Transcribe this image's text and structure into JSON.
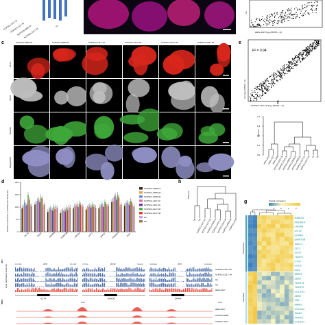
{
  "panels": {
    "c": "c",
    "d": "d",
    "e": "e",
    "f": "f",
    "g": "g",
    "h": "h",
    "i": "i",
    "j": "j"
  },
  "top_strip": {
    "legend_items": [
      "hCiPSCs-1117-1#",
      "hCiPSCs-1117-3#",
      "hCiPSCs-0928-3#",
      "hCiPSCs-1217-3#",
      "H1"
    ]
  },
  "panel_c": {
    "columns": [
      "hCiPSCs-0928-1#",
      "hCiPSCs-0928-2#",
      "hCiPSCs-1117-1#",
      "hCiPSCs-1117-3#",
      "hCiPSCs-0127-3#",
      "hCiPSCs-0127-4#"
    ],
    "rows": [
      {
        "marker": "OCT4",
        "color": "#d8261c"
      },
      {
        "marker": "SOX2",
        "color": "#bdbdbd"
      },
      {
        "marker": "NANOG",
        "color": "#3fa93a"
      },
      {
        "marker": "Merge/DAPI",
        "color": "#8e8ec2"
      }
    ]
  },
  "panel_e": {
    "r2": "R² = 0.94",
    "ylabel": "H1 (log₂ (FPKM + 1))",
    "xlabel": "hCiPSCs-1117-1# (log₂ (FPKM + 1))",
    "top_xlabel": "HEFs-1117 (log₂ (FPKM + 1))",
    "top_ylabel": "H1"
  },
  "panel_f": {
    "ylabel": "Distance",
    "ticks": [
      "0.0",
      "0.1",
      "0.2",
      "0.3",
      "0.4"
    ],
    "leaves": [
      "HEFs-0127",
      "HEFs-1117",
      "HEFs-0928",
      "hCiPSCs-0127-3#",
      "hCiPSCs-0127-4#",
      "hCiPSCs-0928-1#",
      "hCiPSCs-0928-2#",
      "hCiPSCs-0928-3#",
      "hCiPSCs-1117-1#",
      "hCiPSCs-1117-3#",
      "H1",
      "H9"
    ]
  },
  "panel_d": {
    "ylabel": "Relative expression to GAPDH and HEFs (%)",
    "yticks": [
      "0",
      "50",
      "100",
      "150",
      "200"
    ],
    "ylim": [
      0,
      200
    ],
    "genes": [
      "OCT4",
      "SOX2",
      "NANOG",
      "DNMT3B",
      "DPPA4",
      "UTF1",
      "ZFP42",
      "PRDM14",
      "ZIC3"
    ],
    "legend": [
      {
        "name": "hCiPSCs-0928-1#",
        "color": "#2a2a2a"
      },
      {
        "name": "hCiPSCs-0928-2#",
        "color": "#f2a13a"
      },
      {
        "name": "hCiPSCs-0928-3#",
        "color": "#5c8fcf"
      },
      {
        "name": "hCiPSCs-1117-1#",
        "color": "#e06ca4"
      },
      {
        "name": "hCiPSCs-1117-3#",
        "color": "#6a3aa2"
      },
      {
        "name": "hCiPSCs-0127-3#",
        "color": "#4db04a"
      },
      {
        "name": "hCiPSCs-0127-4#",
        "color": "#e53c2f"
      },
      {
        "name": "H1",
        "color": "#c8a2d8"
      },
      {
        "name": "H9",
        "color": "#9c7b52"
      }
    ]
  },
  "chart_data": {
    "type": "bar",
    "categories": [
      "OCT4",
      "SOX2",
      "NANOG",
      "DNMT3B",
      "DPPA4",
      "UTF1",
      "ZFP42",
      "PRDM14",
      "ZIC3"
    ],
    "ylabel": "Relative expression to GAPDH and HEFs (%)",
    "ylim": [
      0,
      200
    ],
    "series": [
      {
        "name": "hCiPSCs-0928-1#",
        "values": [
          95,
          110,
          80,
          75,
          95,
          90,
          95,
          120,
          105
        ]
      },
      {
        "name": "hCiPSCs-0928-2#",
        "values": [
          100,
          115,
          88,
          80,
          100,
          95,
          100,
          125,
          110
        ]
      },
      {
        "name": "hCiPSCs-0928-3#",
        "values": [
          120,
          125,
          95,
          85,
          105,
          100,
          110,
          140,
          118
        ]
      },
      {
        "name": "hCiPSCs-1117-1#",
        "values": [
          105,
          130,
          90,
          90,
          110,
          105,
          105,
          145,
          115
        ]
      },
      {
        "name": "hCiPSCs-1117-3#",
        "values": [
          110,
          120,
          85,
          82,
          100,
          98,
          100,
          130,
          108
        ]
      },
      {
        "name": "hCiPSCs-0127-3#",
        "values": [
          150,
          140,
          100,
          95,
          115,
          110,
          120,
          150,
          125
        ]
      },
      {
        "name": "hCiPSCs-0127-4#",
        "values": [
          130,
          135,
          92,
          88,
          108,
          102,
          112,
          138,
          120
        ]
      },
      {
        "name": "H1",
        "values": [
          100,
          100,
          100,
          100,
          100,
          100,
          100,
          100,
          100
        ]
      },
      {
        "name": "H9",
        "values": [
          105,
          110,
          95,
          98,
          102,
          97,
          104,
          110,
          103
        ]
      }
    ]
  },
  "panel_h": {
    "ylabel": "Distance",
    "leaves": [
      "H9",
      "H1",
      "hCiPSCs-1117-1#",
      "hCiPSCs-1117-3#",
      "hCiPSCs-0928-1#",
      "hCiPSCs-0127-3#",
      "hCiPSCs-0127-4#",
      "hCiPSCs-0928-3#",
      "hCiPSCs-0118"
    ]
  },
  "panel_g": {
    "legend_title": "Scaled expression",
    "legend_ticks": [
      "-1",
      "0",
      "1",
      "2"
    ],
    "groups": [
      "Pluripotency",
      "Fibroblast"
    ],
    "pluri_genes": [
      "NANOG",
      "PRDM14",
      "LIN28A",
      "OCT4",
      "DPPA4",
      "DNMT3B",
      "SALL4",
      "ZIC3",
      "SOX2",
      "TDGF1",
      "OTX2",
      "CDH1",
      "ZIC2"
    ],
    "fibro_genes": [
      "MMP1",
      "ZEB2",
      "TWIST1",
      "TWIST2",
      "COL1A1",
      "ZEB1",
      "VIM",
      "MMP2",
      "COL3A1",
      "SNAI2",
      "PRRX1",
      "COL5A1"
    ]
  },
  "panel_i": {
    "ylabel": "CpG methylation level (%)",
    "regions": [
      {
        "chr": "chr6",
        "gene": "OCT4"
      },
      {
        "chr": "chr12",
        "gene": "NANOG"
      },
      {
        "chr": "chr3",
        "gene": "DPPA4"
      }
    ],
    "coords": [
      "31126230",
      "31147487",
      "7787500",
      "7804000",
      "109320000",
      "109340000"
    ],
    "tracks": [
      "hCiPSCs-1117-2#",
      "hCiPSCs-1117-1#",
      "H1",
      "H9",
      "HEFs-1117"
    ]
  },
  "panel_j": {
    "scale1": "1 kb",
    "scale2": "1 kb",
    "tracks": [
      "HEFs-1117",
      "hADSCs-0809",
      "hADSCs-1217"
    ]
  },
  "colors": {
    "oct4": "#d8261c",
    "sox2": "#bdbdbd",
    "nanog": "#3fa93a",
    "merge": "#8e8ec2",
    "meth_blue": "#3b5f9e",
    "meth_red": "#e0382b",
    "heat_low": "#3a7fc0",
    "heat_high": "#f3c842"
  }
}
